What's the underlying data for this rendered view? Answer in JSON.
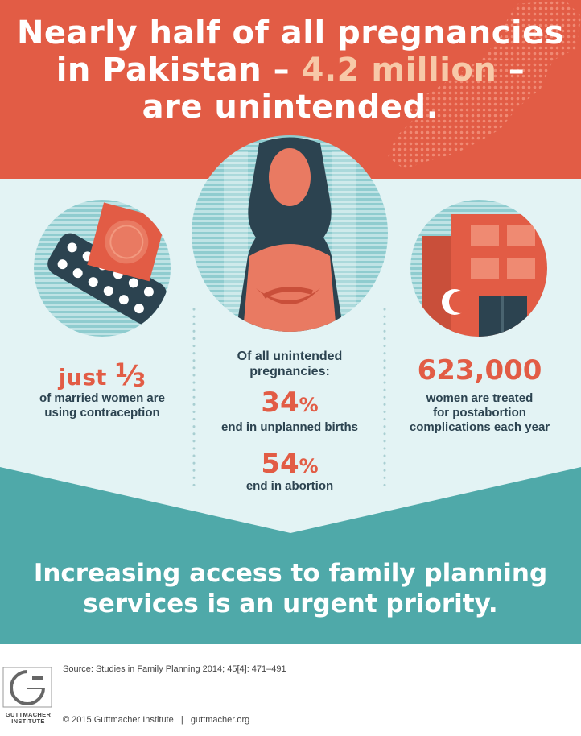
{
  "headline": {
    "line1": "Nearly half of all pregnancies",
    "line2_pre": "in Pakistan – ",
    "line2_highlight": "4.2 million",
    "line2_post": " –",
    "line3": "are unintended."
  },
  "left_stat": {
    "prefix": "just ",
    "fraction_num": "1",
    "fraction_den": "3",
    "line1": "of married women are",
    "line2": "using contraception"
  },
  "center_stat": {
    "intro1": "Of all unintended",
    "intro2": "pregnancies:",
    "value1": "34",
    "value1_unit": "%",
    "label1": "end in unplanned births",
    "value2": "54",
    "value2_unit": "%",
    "label2": "end in abortion"
  },
  "right_stat": {
    "value": "623,000",
    "line1": "women are treated",
    "line2": "for postabortion",
    "line3": "complications each year"
  },
  "bottom": {
    "line1": "Increasing access to family planning",
    "line2": "services is an urgent priority."
  },
  "footer": {
    "source": "Source: Studies in Family Planning 2014; 45[4]: 471–491",
    "copyright": "© 2015 Guttmacher Institute   |   guttmacher.org",
    "logo_line1": "GUTTMACHER",
    "logo_line2": "INSTITUTE"
  },
  "icons": [
    "pakistan-map-icon",
    "contraceptive-pill-icon",
    "woman-pregnant-icon",
    "hospital-icon"
  ],
  "colors": {
    "coral": "#e25c45",
    "teal": "#4fa9a9",
    "light_teal": "#e3f3f4",
    "navy": "#2c4350",
    "peach": "#f7c9a8"
  }
}
